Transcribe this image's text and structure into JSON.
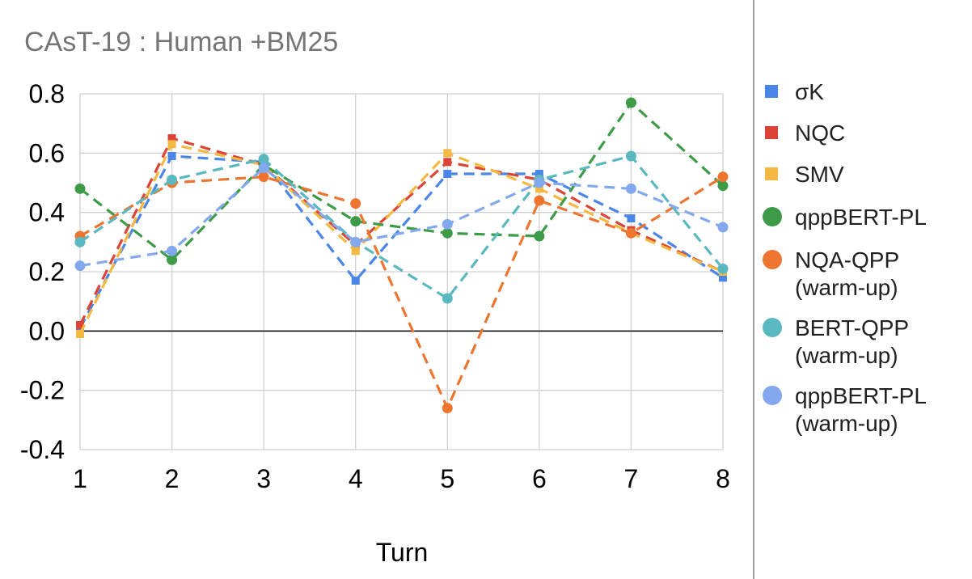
{
  "chart_data": {
    "type": "line",
    "title": "CAsT-19 : Human +BM25",
    "xlabel": "Turn",
    "ylabel": "",
    "x": [
      1,
      2,
      3,
      4,
      5,
      6,
      7,
      8
    ],
    "ylim": [
      -0.4,
      0.8
    ],
    "yticks": [
      "0.8",
      "0.6",
      "0.4",
      "0.2",
      "0.0",
      "-0.2",
      "-0.4"
    ],
    "ytick_values": [
      0.8,
      0.6,
      0.4,
      0.2,
      0.0,
      -0.2,
      -0.4
    ],
    "grid": true,
    "legend_position": "right",
    "series": [
      {
        "name": "σK",
        "color": "#4a86e8",
        "marker": "square",
        "values": [
          0.01,
          0.59,
          0.57,
          0.17,
          0.53,
          0.53,
          0.38,
          0.18
        ]
      },
      {
        "name": "NQC",
        "color": "#db4437",
        "marker": "square",
        "values": [
          0.02,
          0.65,
          0.56,
          0.29,
          0.57,
          0.51,
          0.34,
          0.2
        ]
      },
      {
        "name": "SMV",
        "color": "#f4b942",
        "marker": "square",
        "values": [
          -0.01,
          0.63,
          0.56,
          0.27,
          0.6,
          0.48,
          0.33,
          0.2
        ]
      },
      {
        "name": "qppBERT-PL",
        "color": "#3d9b48",
        "marker": "circle",
        "values": [
          0.48,
          0.24,
          0.56,
          0.37,
          0.33,
          0.32,
          0.77,
          0.49
        ]
      },
      {
        "name": "NQA-QPP (warm-up)",
        "color": "#ee7530",
        "marker": "circle",
        "values": [
          0.32,
          0.5,
          0.52,
          0.43,
          -0.26,
          0.44,
          0.33,
          0.52
        ]
      },
      {
        "name": "BERT-QPP (warm-up)",
        "color": "#5ab8c1",
        "marker": "circle",
        "values": [
          0.3,
          0.51,
          0.58,
          0.3,
          0.11,
          0.51,
          0.59,
          0.21
        ]
      },
      {
        "name": "qppBERT-PL (warm-up)",
        "color": "#83a8ee",
        "marker": "circle",
        "values": [
          0.22,
          0.27,
          0.55,
          0.3,
          0.36,
          0.5,
          0.48,
          0.35
        ]
      }
    ]
  },
  "legend": [
    {
      "line1": "σK",
      "line2": ""
    },
    {
      "line1": "NQC",
      "line2": ""
    },
    {
      "line1": "SMV",
      "line2": ""
    },
    {
      "line1": "qppBERT-PL",
      "line2": ""
    },
    {
      "line1": "NQA-QPP",
      "line2": "(warm-up)"
    },
    {
      "line1": "BERT-QPP",
      "line2": "(warm-up)"
    },
    {
      "line1": "qppBERT-PL",
      "line2": "(warm-up)"
    }
  ]
}
